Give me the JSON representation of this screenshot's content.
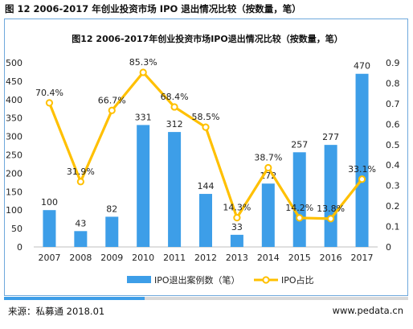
{
  "figure_title": "图 12 2006-2017 年创业投资市场 IPO 退出情况比较（按数量，笔）",
  "source": "来源：私募通 2018.01",
  "website": "www.pedata.cn",
  "chart_data": {
    "type": "bar",
    "title": "图12 2006-2017年创业投资市场IPO退出情况比较（按数量，笔）",
    "categories": [
      "2007",
      "2008",
      "2009",
      "2010",
      "2011",
      "2012",
      "2013",
      "2014",
      "2015",
      "2016",
      "2017"
    ],
    "series": [
      {
        "name": "IPO退出案例数（笔）",
        "type": "bar",
        "axis": "left",
        "color": "#3d9ee8",
        "values": [
          100,
          43,
          82,
          331,
          312,
          144,
          33,
          172,
          257,
          277,
          470
        ],
        "labels": [
          "100",
          "43",
          "82",
          "331",
          "312",
          "144",
          "33",
          "172",
          "257",
          "277",
          "470"
        ]
      },
      {
        "name": "IPO占比",
        "type": "line",
        "axis": "right",
        "color": "#ffc000",
        "values": [
          0.704,
          0.319,
          0.667,
          0.853,
          0.684,
          0.585,
          0.143,
          0.387,
          0.142,
          0.138,
          0.331
        ],
        "labels": [
          "70.4%",
          "31.9%",
          "66.7%",
          "85.3%",
          "68.4%",
          "58.5%",
          "14.3%",
          "38.7%",
          "14.2%",
          "13.8%",
          "33.1%"
        ]
      }
    ],
    "left_axis": {
      "ylim": [
        0,
        500
      ],
      "ticks": [
        "0",
        "50",
        "100",
        "150",
        "200",
        "250",
        "300",
        "350",
        "400",
        "450",
        "500"
      ]
    },
    "right_axis": {
      "ylim": [
        0,
        0.9
      ],
      "ticks": [
        "0",
        "0.1",
        "0.2",
        "0.3",
        "0.4",
        "0.5",
        "0.6",
        "0.7",
        "0.8",
        "0.9"
      ]
    },
    "grid": false,
    "legend_position": "bottom"
  }
}
